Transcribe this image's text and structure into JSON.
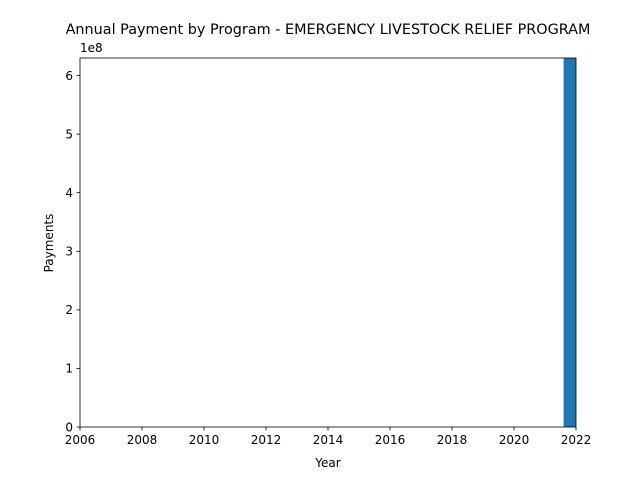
{
  "chart_data": {
    "type": "bar",
    "title": "Annual Payment by Program - EMERGENCY LIVESTOCK RELIEF PROGRAM",
    "xlabel": "Year",
    "ylabel": "Payments",
    "y_offset_label": "1e8",
    "xlim": [
      2006,
      2022
    ],
    "ylim": [
      0,
      630000000
    ],
    "x_ticks": [
      "2006",
      "2008",
      "2010",
      "2012",
      "2014",
      "2016",
      "2018",
      "2020",
      "2022"
    ],
    "y_ticks": [
      "0",
      "1",
      "2",
      "3",
      "4",
      "5",
      "6"
    ],
    "bar_color": "#1f77b4",
    "grid": false,
    "bars": [
      {
        "x": 2022,
        "value": 630000000
      }
    ]
  }
}
